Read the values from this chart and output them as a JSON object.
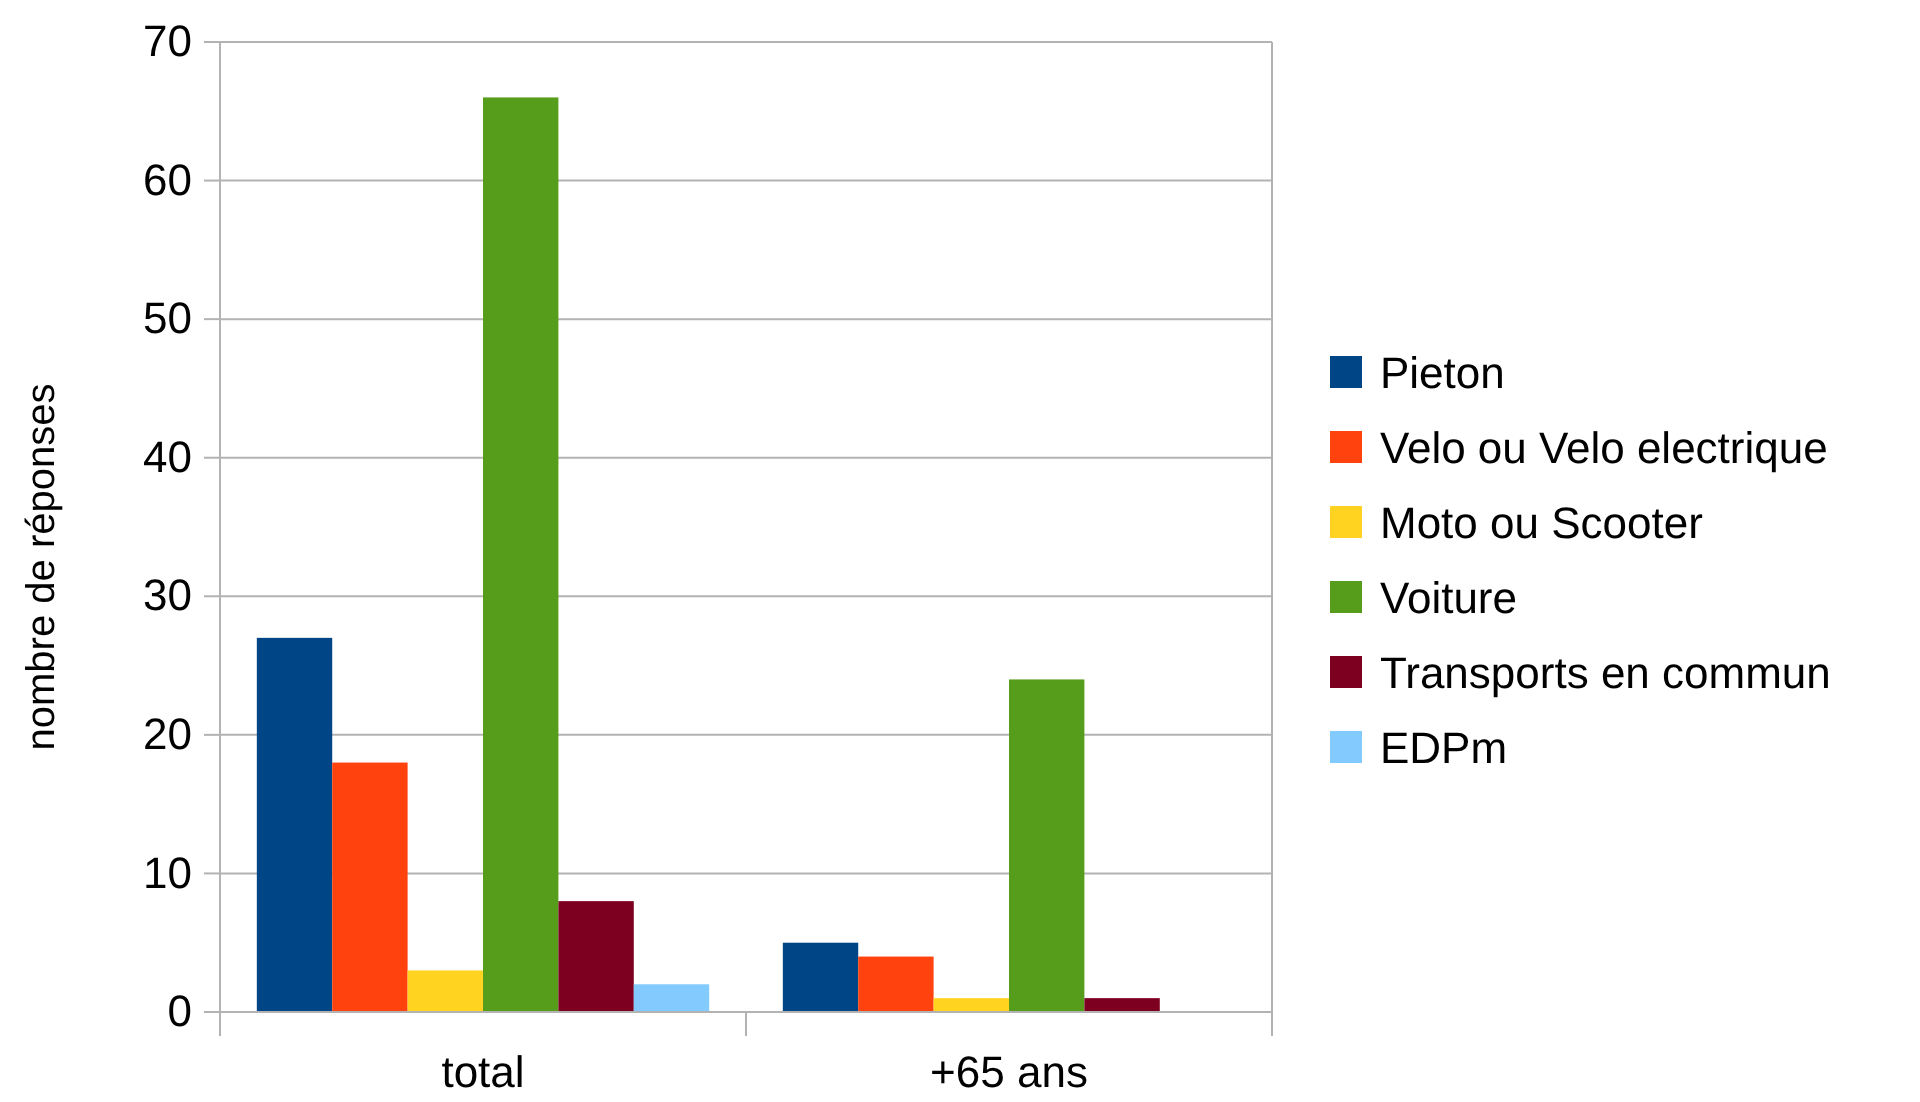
{
  "chart_data": {
    "type": "bar",
    "ylabel": "nombre de réponses",
    "categories": [
      "total",
      "+65 ans"
    ],
    "series": [
      {
        "name": "Pieton",
        "color": "#004586",
        "values": [
          27,
          5
        ]
      },
      {
        "name": "Velo ou Velo electrique",
        "color": "#ff420e",
        "values": [
          18,
          4
        ]
      },
      {
        "name": "Moto ou Scooter",
        "color": "#ffd320",
        "values": [
          3,
          1
        ]
      },
      {
        "name": "Voiture",
        "color": "#579d1c",
        "values": [
          66,
          24
        ]
      },
      {
        "name": "Transports en commun",
        "color": "#7e0021",
        "values": [
          8,
          1
        ]
      },
      {
        "name": "EDPm",
        "color": "#83caff",
        "values": [
          2,
          0
        ]
      }
    ],
    "ylim": [
      0,
      70
    ],
    "yticks": [
      0,
      10,
      20,
      30,
      40,
      50,
      60,
      70
    ],
    "grid": "y",
    "legend": "right"
  }
}
